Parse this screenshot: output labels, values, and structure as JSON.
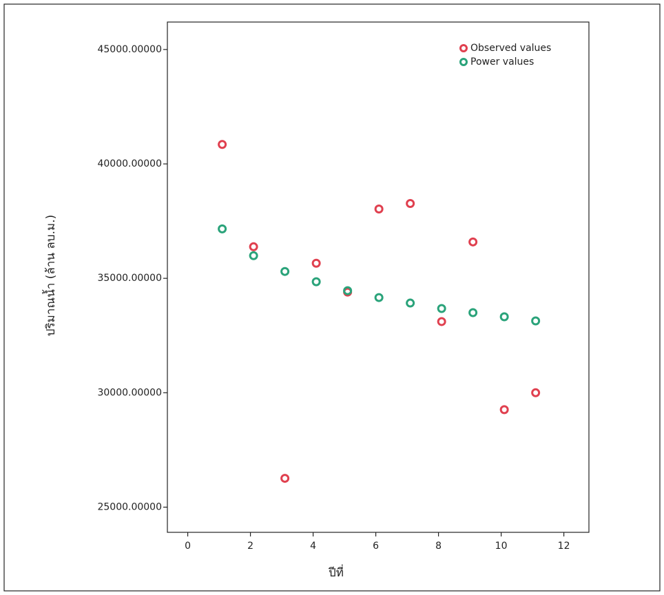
{
  "chart_data": {
    "type": "scatter",
    "x_label": "ปีที่",
    "y_label": "ปริมาณน้ำ (ล้าน ลบ.ม.)",
    "xlim": [
      -0.65,
      12.8
    ],
    "xticks": [
      0,
      2,
      4,
      6,
      8,
      10,
      12
    ],
    "ylim": [
      23900,
      46200
    ],
    "yticks": [
      {
        "value": 25000,
        "label": "25000.00000"
      },
      {
        "value": 30000,
        "label": "30000.00000"
      },
      {
        "value": 35000,
        "label": "35000.00000"
      },
      {
        "value": 40000,
        "label": "40000.00000"
      },
      {
        "value": 45000,
        "label": "45000.00000"
      }
    ],
    "legend": "top-right",
    "x": [
      1.1,
      2.1,
      3.1,
      4.1,
      5.1,
      6.1,
      7.1,
      8.1,
      9.1,
      10.1,
      11.1
    ],
    "series": [
      {
        "name": "Observed values",
        "color": "#e0404f",
        "values": [
          40850,
          36380,
          26260,
          35660,
          34400,
          38030,
          38270,
          33110,
          36590,
          29260,
          30000
        ]
      },
      {
        "name": "Power values",
        "color": "#2aa37a",
        "values": [
          37160,
          35990,
          35300,
          34850,
          34460,
          34160,
          33920,
          33680,
          33500,
          33320,
          33140
        ]
      }
    ]
  }
}
